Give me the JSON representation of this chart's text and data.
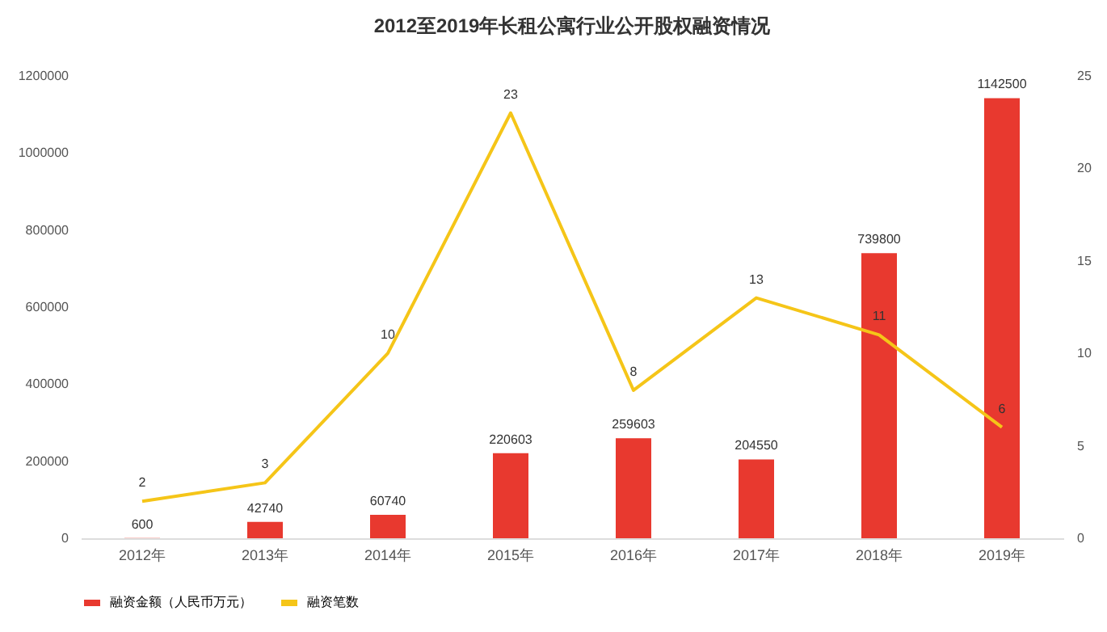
{
  "chart_data": {
    "type": "bar",
    "title": "2012至2019年长租公寓行业公开股权融资情况",
    "categories": [
      "2012年",
      "2013年",
      "2014年",
      "2015年",
      "2016年",
      "2017年",
      "2018年",
      "2019年"
    ],
    "series": [
      {
        "name": "融资金额（人民币万元）",
        "color": "#e8392f",
        "values": [
          600,
          42740,
          60740,
          220603,
          259603,
          204550,
          739800,
          1142500
        ]
      },
      {
        "name": "融资笔数",
        "type": "line",
        "axis": "y2",
        "color": "#f5c518",
        "values": [
          2,
          3,
          10,
          23,
          8,
          13,
          11,
          6
        ]
      }
    ],
    "ylim": [
      0,
      1200000
    ],
    "yticks": [
      0,
      200000,
      400000,
      600000,
      800000,
      1000000,
      1200000
    ],
    "y2lim": [
      0,
      25
    ],
    "y2ticks": [
      0,
      5,
      10,
      15,
      20,
      25
    ],
    "data_labels": true,
    "legend": "bottom"
  }
}
